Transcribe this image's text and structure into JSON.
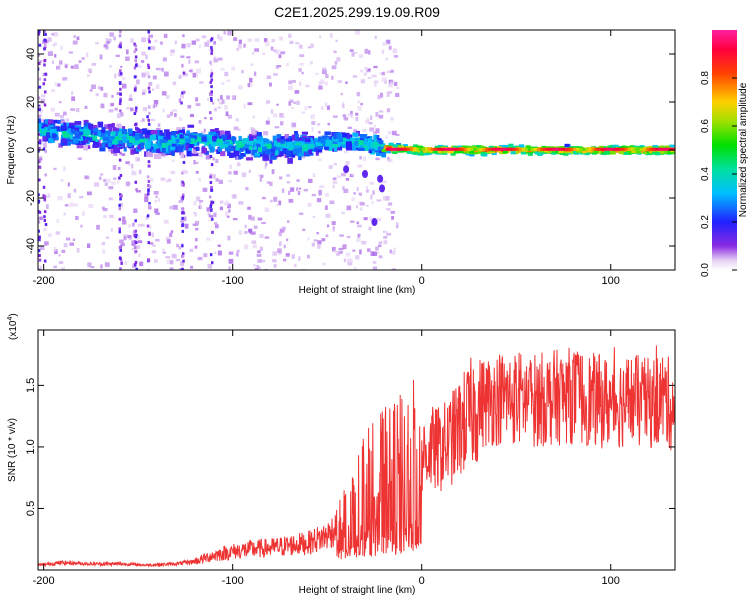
{
  "title": "C2E1.2025.299.19.09.R09",
  "chart_data": [
    {
      "type": "heatmap",
      "name": "spectrogram",
      "xlabel": "Height of straight line (km)",
      "ylabel": "Frequency (Hz)",
      "xlim": [
        -203,
        134
      ],
      "ylim": [
        -50,
        50
      ],
      "xticks": [
        -200,
        -100,
        0,
        100
      ],
      "yticks": [
        40,
        20,
        0,
        -20,
        -40
      ],
      "ridge": [
        {
          "x": -200,
          "y": 8
        },
        {
          "x": -180,
          "y": 6
        },
        {
          "x": -160,
          "y": 5
        },
        {
          "x": -140,
          "y": 3
        },
        {
          "x": -120,
          "y": 4
        },
        {
          "x": -100,
          "y": 2
        },
        {
          "x": -80,
          "y": 1
        },
        {
          "x": -60,
          "y": 2
        },
        {
          "x": -40,
          "y": 4
        },
        {
          "x": -20,
          "y": 1
        },
        {
          "x": 0,
          "y": 0
        },
        {
          "x": 20,
          "y": 0
        },
        {
          "x": 60,
          "y": 0
        },
        {
          "x": 100,
          "y": 0
        },
        {
          "x": 134,
          "y": 0
        }
      ],
      "colorbar": {
        "label": "Normalized spectral amplitude",
        "range": [
          0,
          1
        ],
        "ticks": [
          0.0,
          0.2,
          0.4,
          0.6,
          0.8
        ]
      }
    },
    {
      "type": "line",
      "name": "snr",
      "xlabel": "Height of straight line (km)",
      "ylabel": "SNR (10 * v/v)",
      "scale_label": "(x10",
      "scale_exp": "4",
      "xlim": [
        -203,
        134
      ],
      "ylim": [
        0,
        1.95
      ],
      "xticks": [
        -200,
        -100,
        0,
        100
      ],
      "yticks": [
        0.5,
        1.0,
        1.5
      ],
      "color": "#ee3333",
      "series": [
        {
          "x": -203,
          "y": 0.04
        },
        {
          "x": -190,
          "y": 0.06
        },
        {
          "x": -175,
          "y": 0.05
        },
        {
          "x": -160,
          "y": 0.05
        },
        {
          "x": -145,
          "y": 0.04
        },
        {
          "x": -130,
          "y": 0.05
        },
        {
          "x": -120,
          "y": 0.07
        },
        {
          "x": -110,
          "y": 0.12
        },
        {
          "x": -100,
          "y": 0.15
        },
        {
          "x": -90,
          "y": 0.17
        },
        {
          "x": -80,
          "y": 0.18
        },
        {
          "x": -70,
          "y": 0.2
        },
        {
          "x": -60,
          "y": 0.22
        },
        {
          "x": -50,
          "y": 0.28
        },
        {
          "x": -45,
          "y": 0.35
        },
        {
          "x": -40,
          "y": 0.4
        },
        {
          "x": -35,
          "y": 0.6
        },
        {
          "x": -30,
          "y": 0.7
        },
        {
          "x": -25,
          "y": 0.75
        },
        {
          "x": -20,
          "y": 0.8
        },
        {
          "x": -15,
          "y": 0.78
        },
        {
          "x": -10,
          "y": 0.85
        },
        {
          "x": -5,
          "y": 0.9
        },
        {
          "x": 0,
          "y": 0.93
        },
        {
          "x": 5,
          "y": 0.98
        },
        {
          "x": 10,
          "y": 0.98
        },
        {
          "x": 15,
          "y": 1.05
        },
        {
          "x": 20,
          "y": 1.15
        },
        {
          "x": 25,
          "y": 1.25
        },
        {
          "x": 30,
          "y": 1.35
        },
        {
          "x": 40,
          "y": 1.4
        },
        {
          "x": 50,
          "y": 1.4
        },
        {
          "x": 60,
          "y": 1.38
        },
        {
          "x": 70,
          "y": 1.4
        },
        {
          "x": 80,
          "y": 1.42
        },
        {
          "x": 90,
          "y": 1.38
        },
        {
          "x": 100,
          "y": 1.36
        },
        {
          "x": 110,
          "y": 1.38
        },
        {
          "x": 120,
          "y": 1.35
        },
        {
          "x": 128,
          "y": 1.4
        },
        {
          "x": 134,
          "y": 1.3
        }
      ]
    }
  ]
}
